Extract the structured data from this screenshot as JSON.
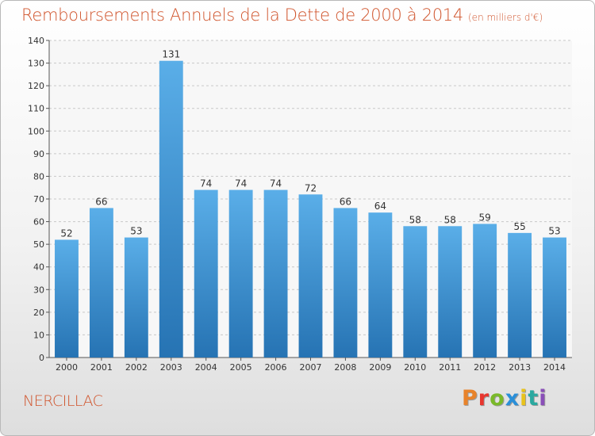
{
  "header": {
    "title": "Remboursements Annuels de la Dette de 2000 à 2014",
    "subtitle": "(en milliers d'€)"
  },
  "footer": {
    "commune": "NERCILLAC",
    "brand": "Proxiti"
  },
  "colors": {
    "title": "#d0542c",
    "bar_light": "#5aaee8",
    "bar_dark": "#2673b3",
    "brand_letters": [
      "#e8832a",
      "#e8352e",
      "#7ab929",
      "#2a8fd8",
      "#e8c21c",
      "#2aa9a0",
      "#8a4fb8"
    ]
  },
  "chart_data": {
    "type": "bar",
    "categories": [
      "2000",
      "2001",
      "2002",
      "2003",
      "2004",
      "2005",
      "2006",
      "2007",
      "2008",
      "2009",
      "2010",
      "2011",
      "2012",
      "2013",
      "2014"
    ],
    "values": [
      52,
      66,
      53,
      131,
      74,
      74,
      74,
      72,
      66,
      64,
      58,
      58,
      59,
      55,
      53
    ],
    "ylim": [
      0,
      140
    ],
    "yticks": [
      0,
      10,
      20,
      30,
      40,
      50,
      60,
      70,
      80,
      90,
      100,
      110,
      120,
      130,
      140
    ],
    "grid": true,
    "data_labels": true
  }
}
